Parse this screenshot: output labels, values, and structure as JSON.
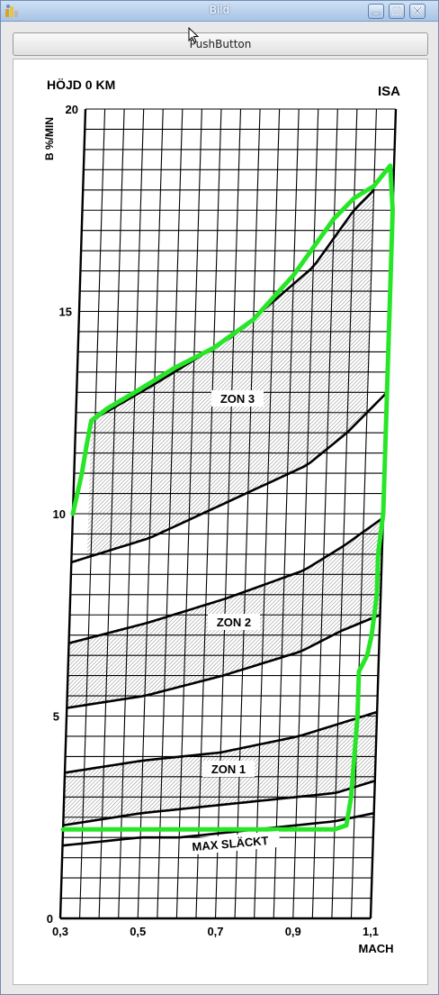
{
  "window": {
    "title": "Bild"
  },
  "controls": {
    "push_button": "PushButton"
  },
  "chart": {
    "top_left_label": "HÖJD 0 KM",
    "top_right_label": "ISA",
    "y_axis_label": "B %/MIN",
    "x_axis_label": "MACH",
    "zone_labels": [
      "ZON 3",
      "ZON 2",
      "ZON 1",
      "MAX SLÄCKT"
    ]
  },
  "chart_data": {
    "type": "line",
    "xlabel": "MACH",
    "ylabel": "B %/MIN",
    "x_ticks": [
      "0,3",
      "0,5",
      "0,7",
      "0,9",
      "1,1"
    ],
    "y_ticks": [
      "0",
      "5",
      "10",
      "15",
      "20"
    ],
    "xlim": [
      0.3,
      1.1
    ],
    "ylim": [
      0,
      20
    ],
    "colors": {
      "curves": "#000000",
      "trace": "#27e627"
    },
    "series": [
      {
        "x": [
          0.3,
          0.4,
          0.5,
          0.6,
          0.7,
          0.8,
          0.9,
          1.0,
          1.1
        ],
        "y": [
          1.8,
          1.9,
          2.0,
          2.0,
          2.1,
          2.2,
          2.3,
          2.4,
          2.6
        ]
      },
      {
        "x": [
          0.3,
          0.5,
          0.7,
          0.9,
          1.0,
          1.1
        ],
        "y": [
          2.3,
          2.6,
          2.8,
          3.0,
          3.1,
          3.4
        ]
      },
      {
        "x": [
          0.3,
          0.5,
          0.7,
          0.9,
          1.0,
          1.1
        ],
        "y": [
          3.6,
          3.9,
          4.1,
          4.5,
          4.8,
          5.1
        ]
      },
      {
        "x": [
          0.3,
          0.5,
          0.7,
          0.9,
          1.0,
          1.1
        ],
        "y": [
          5.2,
          5.5,
          6.0,
          6.6,
          7.1,
          7.5
        ]
      },
      {
        "x": [
          0.3,
          0.5,
          0.7,
          0.9,
          1.0,
          1.1
        ],
        "y": [
          6.8,
          7.3,
          7.9,
          8.6,
          9.2,
          9.9
        ]
      },
      {
        "x": [
          0.3,
          0.5,
          0.7,
          0.9,
          1.0,
          1.1
        ],
        "y": [
          8.8,
          9.4,
          10.3,
          11.2,
          12.0,
          13.0
        ]
      },
      {
        "x": [
          0.34,
          0.5,
          0.7,
          0.9,
          1.0,
          1.05
        ],
        "y": [
          12.3,
          13.2,
          14.4,
          16.1,
          17.5,
          18.0
        ]
      }
    ],
    "shaded_zones": [
      {
        "label": "ZON 1",
        "lower": 1,
        "upper": 2
      },
      {
        "label": "ZON 2",
        "lower": 3,
        "upper": 4
      },
      {
        "label": "ZON 3",
        "lower": 5,
        "upper": 6
      }
    ],
    "trace": {
      "x": [
        0.3,
        0.32,
        0.33,
        0.34,
        0.38,
        0.45,
        0.55,
        0.65,
        0.75,
        0.85,
        0.95,
        1.0,
        1.05,
        1.09,
        1.1,
        1.1,
        1.1,
        1.1,
        1.09,
        1.09,
        1.08,
        1.07,
        1.06,
        1.05,
        1.05,
        1.04,
        1.03,
        1.0,
        0.9,
        0.7,
        0.5,
        0.3
      ],
      "y": [
        10.0,
        11.0,
        11.7,
        12.3,
        12.6,
        13.0,
        13.6,
        14.1,
        14.8,
        15.9,
        17.3,
        17.8,
        18.1,
        18.6,
        17.5,
        15.0,
        12.0,
        10.0,
        9.0,
        8.0,
        7.0,
        6.5,
        6.3,
        6.1,
        5.0,
        3.0,
        2.3,
        2.2,
        2.2,
        2.2,
        2.2,
        2.2
      ]
    }
  }
}
